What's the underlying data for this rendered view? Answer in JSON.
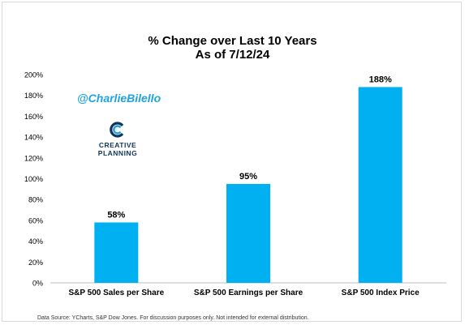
{
  "branding": {
    "handle": "@CharlieBilello",
    "logo_line1": "CREATIVE",
    "logo_line2": "PLANNING"
  },
  "footer": {
    "source": "Data Source: YCharts, S&P Dow Jones. For discussion purposes only. Not intended for external distribution."
  },
  "chart_data": {
    "type": "bar",
    "title": "% Change over Last 10 Years",
    "subtitle": "As of 7/12/24",
    "categories": [
      "S&P 500 Sales per Share",
      "S&P 500 Earnings per Share",
      "S&P 500 Index Price"
    ],
    "values": [
      58,
      95,
      188
    ],
    "data_labels": [
      "58%",
      "95%",
      "188%"
    ],
    "ylim": [
      0,
      200
    ],
    "y_ticks": [
      "0%",
      "20%",
      "40%",
      "60%",
      "80%",
      "100%",
      "120%",
      "140%",
      "160%",
      "180%",
      "200%"
    ],
    "xlabel": "",
    "ylabel": "",
    "grid": false,
    "colors": {
      "bar": "#00b0f0",
      "axis": "#bfbfbf",
      "label": "#000000"
    }
  }
}
